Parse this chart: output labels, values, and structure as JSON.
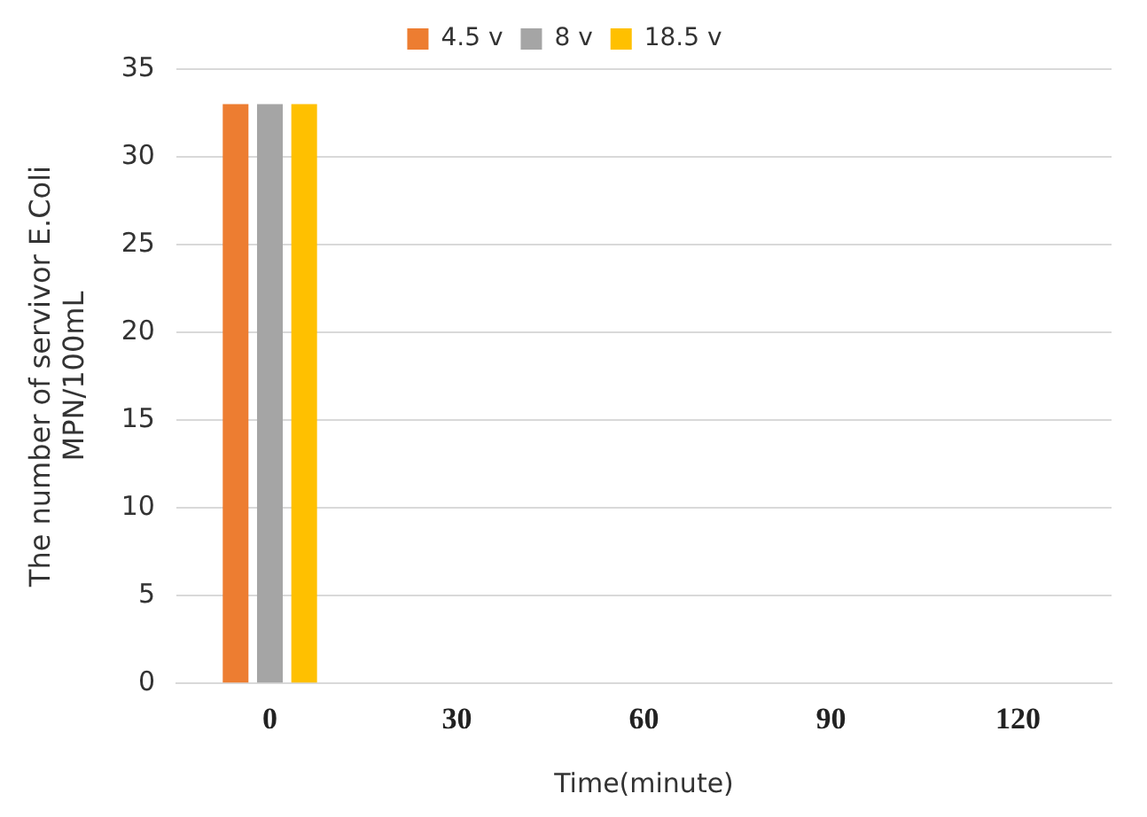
{
  "chart_data": {
    "type": "bar",
    "categories": [
      "0",
      "30",
      "60",
      "90",
      "120"
    ],
    "series": [
      {
        "name": "4.5 v",
        "color": "#ed7d31",
        "values": [
          33,
          0,
          0,
          0,
          0
        ]
      },
      {
        "name": "8 v",
        "color": "#a5a5a5",
        "values": [
          33,
          0,
          0,
          0,
          0
        ]
      },
      {
        "name": "18.5 v",
        "color": "#ffc000",
        "values": [
          33,
          0,
          0,
          0,
          0
        ]
      }
    ],
    "ylim": [
      0,
      35
    ],
    "yticks": [
      0,
      5,
      10,
      15,
      20,
      25,
      30,
      35
    ],
    "grid": "y",
    "legend": "top",
    "xlabel": "Time(minute)",
    "ylabel": "The number of servivor E.Coli\nMPN/100mL"
  }
}
